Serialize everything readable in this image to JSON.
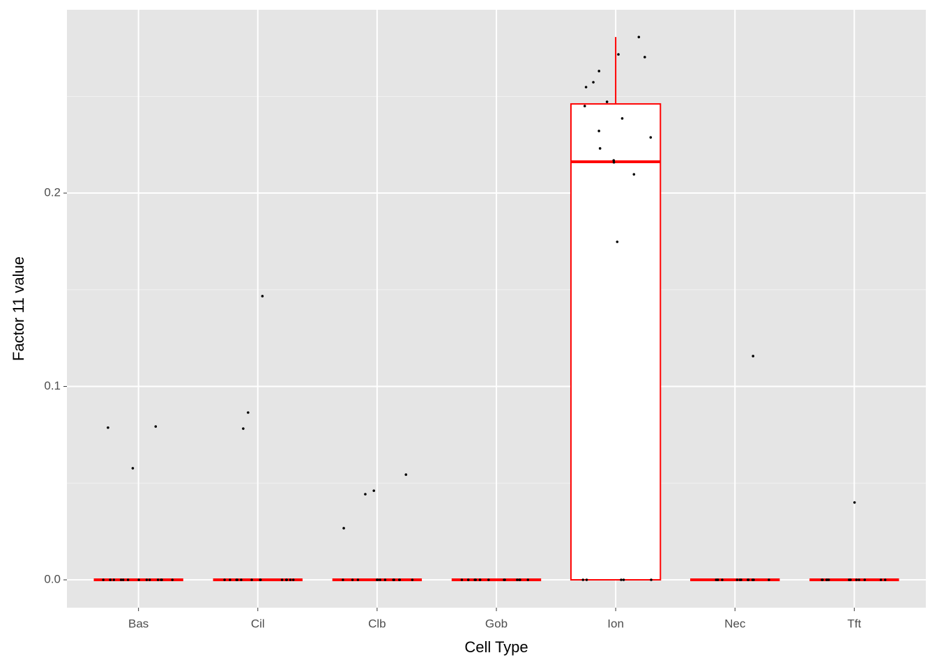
{
  "chart_data": {
    "type": "box",
    "x_label": "Cell Type",
    "y_label": "Factor 11 value",
    "categories": [
      "Bas",
      "Cil",
      "Clb",
      "Gob",
      "Ion",
      "Nec",
      "Tft"
    ],
    "boxes": [
      {
        "whisker_low": 0,
        "q1": 0,
        "median": 0,
        "q3": 0,
        "whisker_high": 0
      },
      {
        "whisker_low": 0,
        "q1": 0,
        "median": 0,
        "q3": 0,
        "whisker_high": 0
      },
      {
        "whisker_low": 0,
        "q1": 0,
        "median": 0,
        "q3": 0,
        "whisker_high": 0
      },
      {
        "whisker_low": 0,
        "q1": 0,
        "median": 0,
        "q3": 0,
        "whisker_high": 0
      },
      {
        "whisker_low": 0,
        "q1": 0,
        "median": 0.2162,
        "q3": 0.2461,
        "whisker_high": 0.2807
      },
      {
        "whisker_low": 0,
        "q1": 0,
        "median": 0,
        "q3": 0,
        "whisker_high": 0
      },
      {
        "whisker_low": 0,
        "q1": 0,
        "median": 0,
        "q3": 0,
        "whisker_high": 0
      }
    ],
    "points": [
      [
        0.0793,
        0.0787,
        0.0577,
        0,
        0,
        0,
        0,
        0,
        0,
        0,
        0,
        0,
        0,
        0,
        0,
        0,
        0
      ],
      [
        0.1467,
        0.0865,
        0.0782,
        0,
        0,
        0,
        0,
        0,
        0,
        0,
        0,
        0,
        0,
        0,
        0,
        0,
        0
      ],
      [
        0.0461,
        0.0443,
        0.0544,
        0.0267,
        0,
        0,
        0,
        0,
        0,
        0,
        0,
        0,
        0,
        0,
        0,
        0
      ],
      [
        0,
        0,
        0,
        0,
        0,
        0,
        0,
        0,
        0,
        0,
        0,
        0,
        0,
        0
      ],
      [
        0.2807,
        0.2717,
        0.2703,
        0.2631,
        0.2573,
        0.2548,
        0.2472,
        0.245,
        0.2386,
        0.2321,
        0.2288,
        0.2231,
        0.2169,
        0.2159,
        0.2097,
        0.1748,
        0,
        0,
        0,
        0,
        0
      ],
      [
        0.1157,
        0,
        0,
        0,
        0,
        0,
        0,
        0,
        0,
        0,
        0,
        0,
        0
      ],
      [
        0.04,
        0,
        0,
        0,
        0,
        0,
        0,
        0,
        0,
        0,
        0,
        0,
        0
      ]
    ],
    "box_color": "#ff0000",
    "point_color": "#000000",
    "ylim": [
      -0.0144,
      0.2948
    ],
    "yticks": [
      {
        "value": 0,
        "label": "0.0"
      },
      0.1,
      0.2
    ],
    "minor_yticks": [
      0.05,
      0.15,
      0.25
    ],
    "grid": true
  }
}
